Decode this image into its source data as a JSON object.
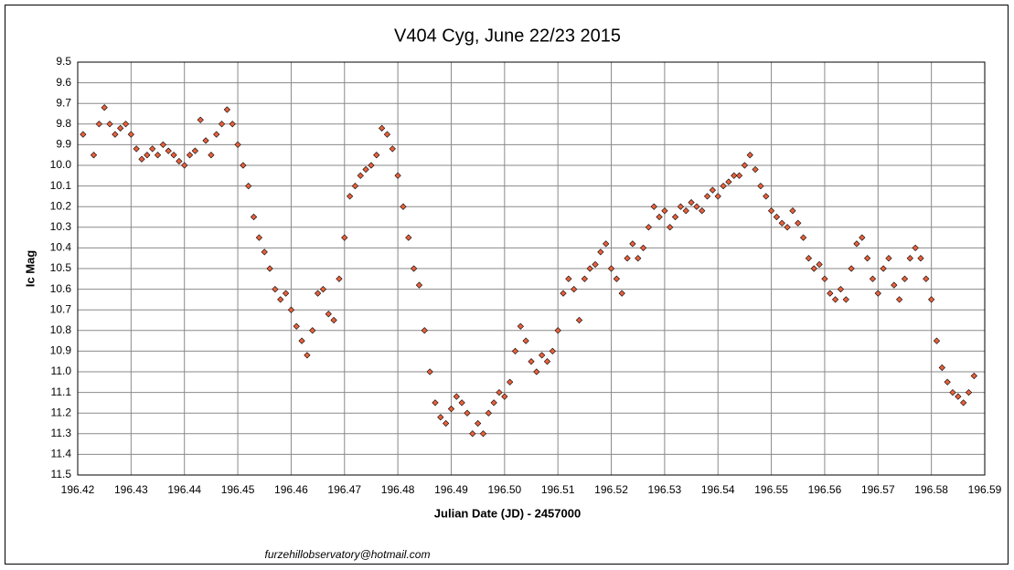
{
  "chart_data": {
    "type": "scatter",
    "title": "V404 Cyg, June 22/23 2015",
    "x_label": "Julian Date (JD) - 2457000",
    "y_label": "Ic Mag",
    "footer": "furzehillobservatory@hotmail.com",
    "y_inverted": true,
    "grid": true,
    "color": "#e8603c",
    "xlim": [
      196.42,
      196.59
    ],
    "xticks": [
      196.42,
      196.43,
      196.44,
      196.45,
      196.46,
      196.47,
      196.48,
      196.49,
      {
        "value": 196.5,
        "label": "196.50"
      },
      196.51,
      196.52,
      196.53,
      196.54,
      196.55,
      196.56,
      196.57,
      196.58,
      196.59
    ],
    "ylim": [
      9.5,
      11.5
    ],
    "yticks": [
      9.5,
      9.6,
      9.7,
      9.8,
      9.9,
      {
        "value": 10,
        "label": "10.0"
      },
      10.1,
      10.2,
      10.3,
      10.4,
      10.5,
      10.6,
      10.7,
      10.8,
      10.9,
      {
        "value": 11,
        "label": "11.0"
      },
      11.1,
      11.2,
      11.3,
      11.4,
      11.5
    ],
    "x": [
      196.421,
      196.423,
      196.424,
      196.425,
      196.426,
      196.427,
      196.428,
      196.429,
      196.43,
      196.431,
      196.432,
      196.433,
      196.434,
      196.435,
      196.436,
      196.437,
      196.438,
      196.439,
      196.44,
      196.441,
      196.442,
      196.443,
      196.444,
      196.445,
      196.446,
      196.447,
      196.448,
      196.449,
      196.45,
      196.451,
      196.452,
      196.453,
      196.454,
      196.455,
      196.456,
      196.457,
      196.458,
      196.459,
      196.46,
      196.461,
      196.462,
      196.463,
      196.464,
      196.465,
      196.466,
      196.467,
      196.468,
      196.469,
      196.47,
      196.471,
      196.472,
      196.473,
      196.474,
      196.475,
      196.476,
      196.477,
      196.478,
      196.479,
      196.48,
      196.481,
      196.482,
      196.483,
      196.484,
      196.485,
      196.486,
      196.487,
      196.488,
      196.489,
      196.49,
      196.491,
      196.492,
      196.493,
      196.494,
      196.495,
      196.496,
      196.497,
      196.498,
      196.499,
      196.5,
      196.501,
      196.502,
      196.503,
      196.504,
      196.505,
      196.506,
      196.507,
      196.508,
      196.509,
      196.51,
      196.511,
      196.512,
      196.513,
      196.514,
      196.515,
      196.516,
      196.517,
      196.518,
      196.519,
      196.52,
      196.521,
      196.522,
      196.523,
      196.524,
      196.525,
      196.526,
      196.527,
      196.528,
      196.529,
      196.53,
      196.531,
      196.532,
      196.533,
      196.534,
      196.535,
      196.536,
      196.537,
      196.538,
      196.539,
      196.54,
      196.541,
      196.542,
      196.543,
      196.544,
      196.545,
      196.546,
      196.547,
      196.548,
      196.549,
      196.55,
      196.551,
      196.552,
      196.553,
      196.554,
      196.555,
      196.556,
      196.557,
      196.558,
      196.559,
      196.56,
      196.561,
      196.562,
      196.563,
      196.564,
      196.565,
      196.566,
      196.567,
      196.568,
      196.569,
      196.57,
      196.571,
      196.572,
      196.573,
      196.574,
      196.575,
      196.576,
      196.577,
      196.578,
      196.579,
      196.58,
      196.581,
      196.582,
      196.583,
      196.584,
      196.585,
      196.586,
      196.587,
      196.588
    ],
    "values": [
      9.85,
      9.95,
      9.8,
      9.72,
      9.8,
      9.85,
      9.82,
      9.8,
      9.85,
      9.92,
      9.97,
      9.95,
      9.92,
      9.95,
      9.9,
      9.93,
      9.95,
      9.98,
      10.0,
      9.95,
      9.93,
      9.78,
      9.88,
      9.95,
      9.85,
      9.8,
      9.73,
      9.8,
      9.9,
      10.0,
      10.1,
      10.25,
      10.35,
      10.42,
      10.5,
      10.6,
      10.65,
      10.62,
      10.7,
      10.78,
      10.85,
      10.92,
      10.8,
      10.62,
      10.6,
      10.72,
      10.75,
      10.55,
      10.35,
      10.15,
      10.1,
      10.05,
      10.02,
      10.0,
      9.95,
      9.82,
      9.85,
      9.92,
      10.05,
      10.2,
      10.35,
      10.5,
      10.58,
      10.8,
      11.0,
      11.15,
      11.22,
      11.25,
      11.18,
      11.12,
      11.15,
      11.2,
      11.3,
      11.25,
      11.3,
      11.2,
      11.15,
      11.1,
      11.12,
      11.05,
      10.9,
      10.78,
      10.85,
      10.95,
      11.0,
      10.92,
      10.95,
      10.9,
      10.8,
      10.62,
      10.55,
      10.6,
      10.75,
      10.55,
      10.5,
      10.48,
      10.42,
      10.38,
      10.5,
      10.55,
      10.62,
      10.45,
      10.38,
      10.45,
      10.4,
      10.3,
      10.2,
      10.25,
      10.22,
      10.3,
      10.25,
      10.2,
      10.22,
      10.18,
      10.2,
      10.22,
      10.15,
      10.12,
      10.15,
      10.1,
      10.08,
      10.05,
      10.05,
      10.0,
      9.95,
      10.02,
      10.1,
      10.15,
      10.22,
      10.25,
      10.28,
      10.3,
      10.22,
      10.28,
      10.35,
      10.45,
      10.5,
      10.48,
      10.55,
      10.62,
      10.65,
      10.6,
      10.65,
      10.5,
      10.38,
      10.35,
      10.45,
      10.55,
      10.62,
      10.5,
      10.45,
      10.58,
      10.65,
      10.55,
      10.45,
      10.4,
      10.45,
      10.55,
      10.65,
      10.85,
      10.98,
      11.05,
      11.1,
      11.12,
      11.15,
      11.1,
      11.02
    ]
  }
}
